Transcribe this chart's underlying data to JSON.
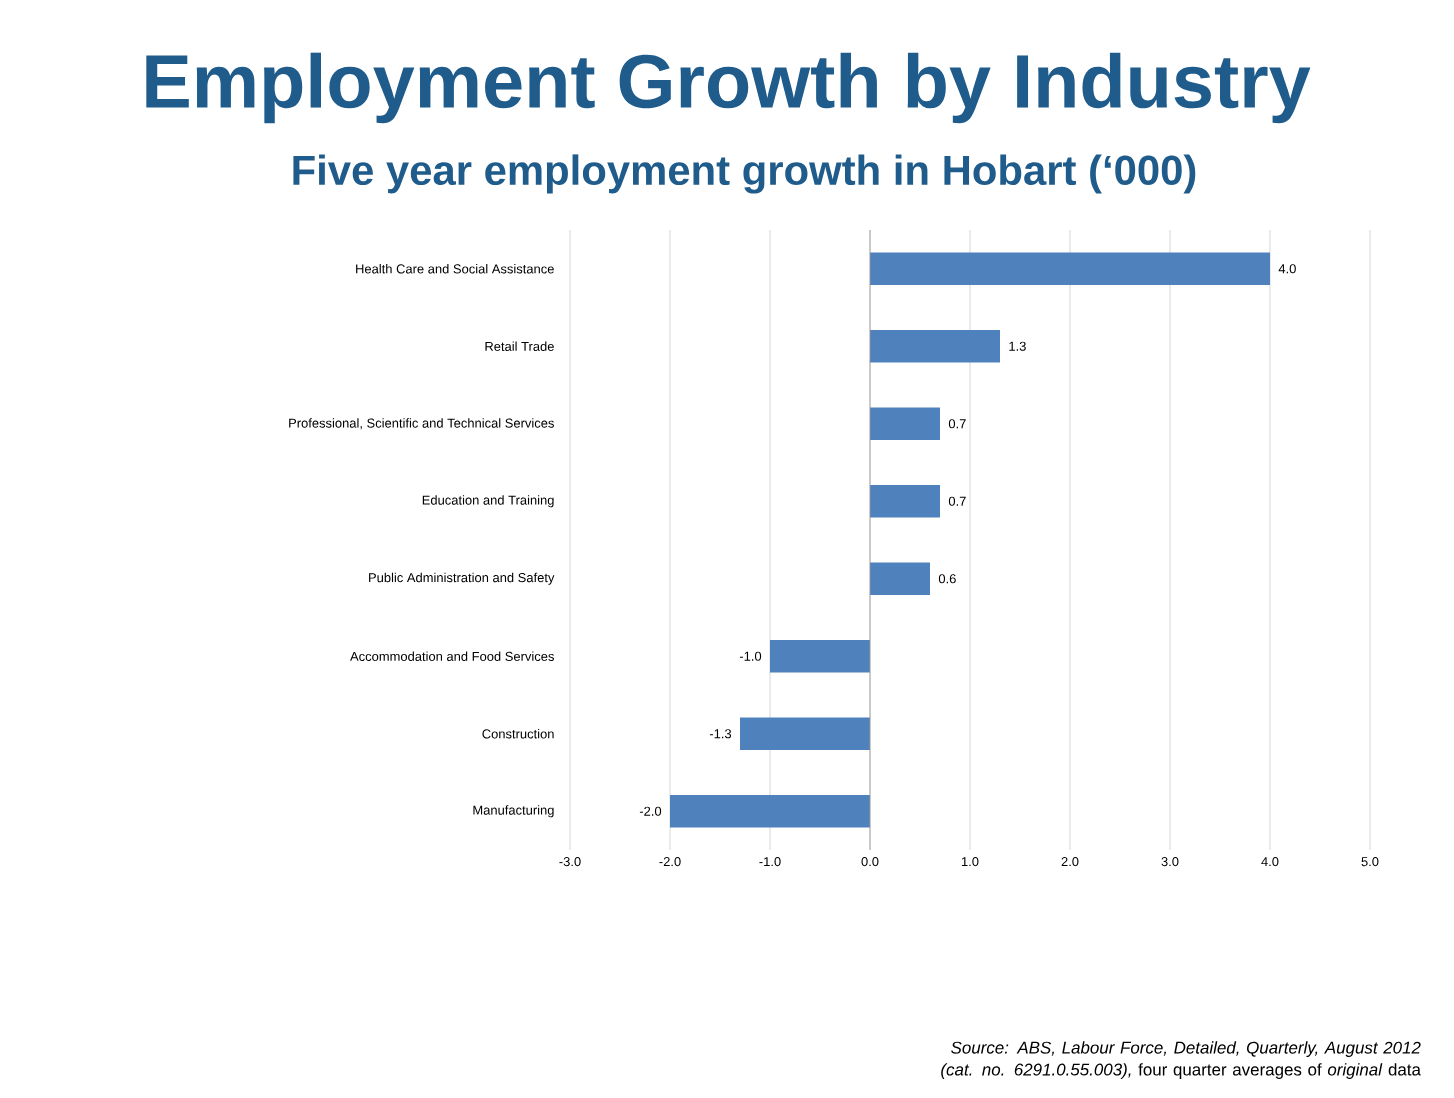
{
  "chart_data": {
    "type": "bar",
    "orientation": "horizontal",
    "title": "Employment Growth by Industry",
    "subtitle": "Five year employment growth in Hobart (‘000)",
    "categories": [
      "Health Care and Social Assistance",
      "Retail Trade",
      "Professional, Scientific and Technical Services",
      "Education and Training",
      "Public Administration and Safety",
      "Accommodation and Food Services",
      "Construction",
      "Manufacturing"
    ],
    "values": [
      4.0,
      1.3,
      0.7,
      0.7,
      0.6,
      -1.0,
      -1.3,
      -2.0
    ],
    "value_labels": [
      "4.0",
      "1.3",
      "0.7",
      "0.7",
      "0.6",
      "-1.0",
      "-1.3",
      "-2.0"
    ],
    "color": "#4f81bd",
    "xlim": [
      -3,
      5
    ],
    "xticks": [
      {
        "value": -3,
        "label": "-3.0"
      },
      {
        "value": -2,
        "label": "-2.0"
      },
      {
        "value": -1,
        "label": "-1.0"
      },
      {
        "value": 0,
        "label": "0.0"
      },
      {
        "value": 1,
        "label": "1.0"
      },
      {
        "value": 2,
        "label": "2.0"
      },
      {
        "value": 3,
        "label": "3.0"
      },
      {
        "value": 4,
        "label": "4.0"
      },
      {
        "value": 5,
        "label": "5.0"
      }
    ],
    "grid": "x",
    "annotations": [
      "*Source: ABS, Labour Force, Detailed, Quarterly, August 2012 (cat. no. 6291.0.55.003),* four quarter averages of *original* data"
    ]
  }
}
